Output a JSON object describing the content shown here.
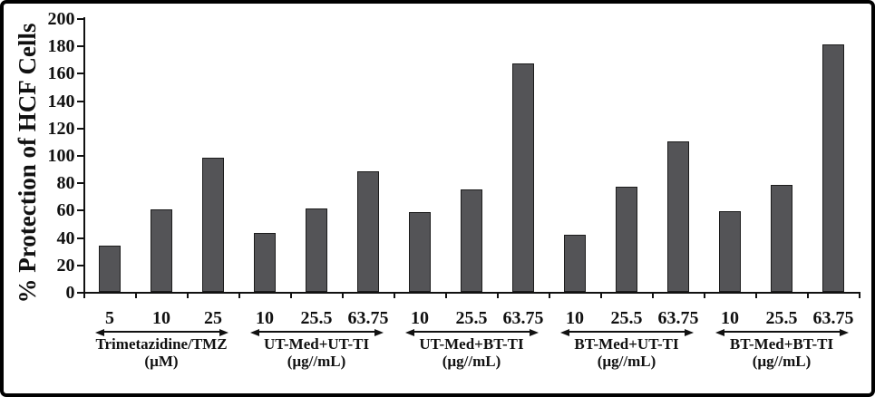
{
  "figure": {
    "background": "#ffffff",
    "border_color": "#000000"
  },
  "chart_data": {
    "type": "bar",
    "title": "",
    "xlabel": "",
    "ylabel": "% Protection of HCF Cells",
    "ylim": [
      0,
      200
    ],
    "ytick_step": 20,
    "yticks": [
      0,
      20,
      40,
      60,
      80,
      100,
      120,
      140,
      160,
      180,
      200
    ],
    "grid": false,
    "legend": false,
    "bar_color": "#545457",
    "bar_border_color": "#1c1c1c",
    "axis_color": "#111111",
    "groups": [
      {
        "label": "Trimetazidine/TMZ",
        "unit": "(µM)",
        "categories": [
          "5",
          "10",
          "25"
        ],
        "values": [
          34,
          60,
          98
        ]
      },
      {
        "label": "UT-Med+UT-TI",
        "unit": "(µg//mL)",
        "categories": [
          "10",
          "25.5",
          "63.75"
        ],
        "values": [
          43,
          61,
          88
        ]
      },
      {
        "label": "UT-Med+BT-TI",
        "unit": "(µg//mL)",
        "categories": [
          "10",
          "25.5",
          "63.75"
        ],
        "values": [
          58,
          75,
          167
        ]
      },
      {
        "label": "BT-Med+UT-TI",
        "unit": "(µg//mL)",
        "categories": [
          "10",
          "25.5",
          "63.75"
        ],
        "values": [
          42,
          77,
          110
        ]
      },
      {
        "label": "BT-Med+BT-TI",
        "unit": "(µg//mL)",
        "categories": [
          "10",
          "25.5",
          "63.75"
        ],
        "values": [
          59,
          78,
          181
        ]
      }
    ]
  }
}
